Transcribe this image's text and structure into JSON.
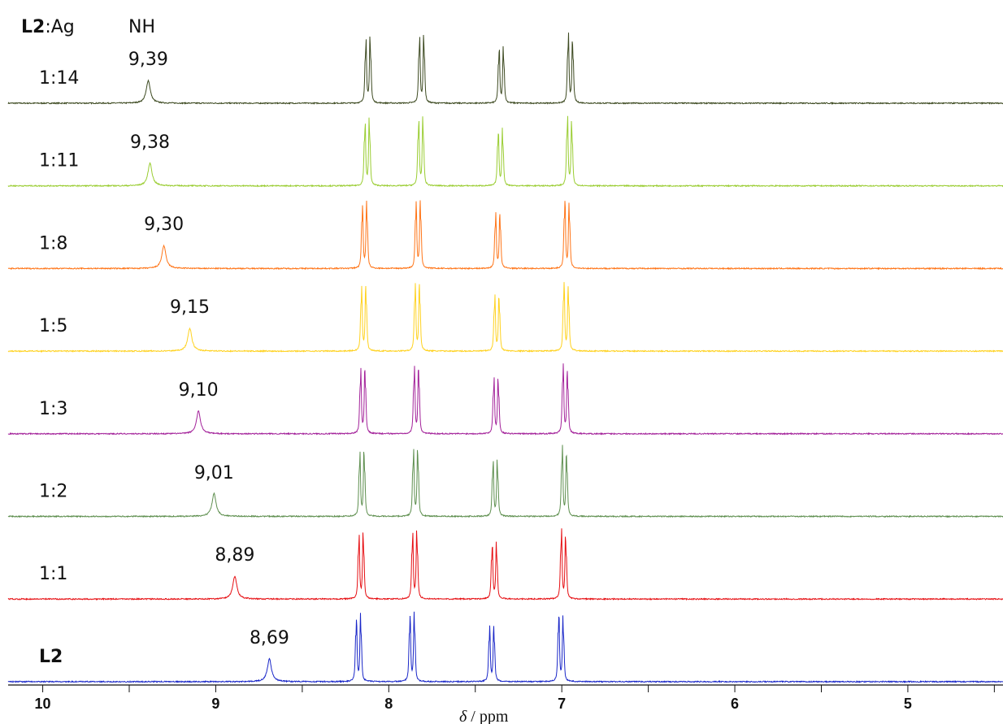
{
  "chart_data": {
    "type": "line",
    "header": {
      "ligand": "L2",
      "ratio_suffix": ":Ag",
      "peak_group": "NH"
    },
    "xlabel_italic": "δ",
    "xlabel_rest": " / ppm",
    "xlim": [
      10.2,
      4.45
    ],
    "x_ticks": [
      {
        "value": 10,
        "label": "10"
      },
      {
        "value": 9,
        "label": "9"
      },
      {
        "value": 8,
        "label": "8"
      },
      {
        "value": 7,
        "label": "7"
      },
      {
        "value": 6,
        "label": "6"
      },
      {
        "value": 5,
        "label": "5"
      }
    ],
    "aromatic_peaks": [
      {
        "center": 8.14,
        "rel": [
          0.92,
          0.98
        ]
      },
      {
        "center": 7.83,
        "rel": [
          0.96,
          1.0
        ]
      },
      {
        "center": 7.37,
        "rel": [
          0.8,
          0.82
        ]
      },
      {
        "center": 6.97,
        "rel": [
          1.0,
          0.94
        ]
      }
    ],
    "series": [
      {
        "name": "1:14",
        "nh_label": "9,39",
        "nh_shift": 9.39,
        "shift_offset": -0.02,
        "color": "#3d4a21"
      },
      {
        "name": "1:11",
        "nh_label": "9,38",
        "nh_shift": 9.38,
        "shift_offset": -0.015,
        "color": "#9acd32"
      },
      {
        "name": "1:8",
        "nh_label": "9,30",
        "nh_shift": 9.3,
        "shift_offset": 0.0,
        "color": "#ff7518"
      },
      {
        "name": "1:5",
        "nh_label": "9,15",
        "nh_shift": 9.15,
        "shift_offset": 0.005,
        "color": "#ffd21f"
      },
      {
        "name": "1:3",
        "nh_label": "9,10",
        "nh_shift": 9.1,
        "shift_offset": 0.01,
        "color": "#a3229a"
      },
      {
        "name": "1:2",
        "nh_label": "9,01",
        "nh_shift": 9.01,
        "shift_offset": 0.015,
        "color": "#5e8f4f"
      },
      {
        "name": "1:1",
        "nh_label": "8,89",
        "nh_shift": 8.89,
        "shift_offset": 0.02,
        "color": "#e60e12"
      },
      {
        "name": "L2",
        "nh_label": "8,69",
        "nh_shift": 8.69,
        "shift_offset": 0.035,
        "color": "#1a27c8"
      }
    ]
  }
}
